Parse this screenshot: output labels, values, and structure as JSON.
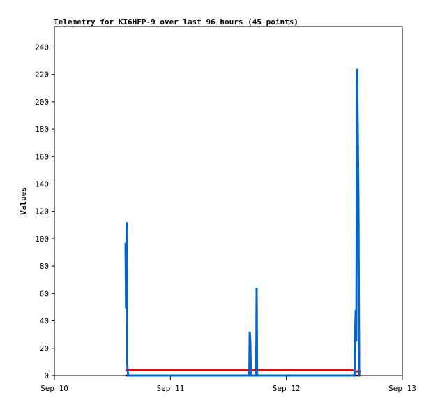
{
  "chart_data": {
    "type": "line",
    "title": "Telemetry for KI6HFP-9 over last 96 hours (45 points)",
    "xlabel": "",
    "ylabel": "Values",
    "xlim": [
      "2023-09-10T00:00",
      "2023-09-13T00:00"
    ],
    "ylim": [
      0,
      255
    ],
    "x_ticks": [
      "Sep 10",
      "Sep 11",
      "Sep 12",
      "Sep 13"
    ],
    "y_ticks": [
      0,
      20,
      40,
      60,
      80,
      100,
      120,
      140,
      160,
      180,
      200,
      220,
      240
    ],
    "grid": false,
    "series": [
      {
        "color": "#000000",
        "points": [
          [
            "2023-09-10T14:43",
            0
          ],
          [
            "2023-09-12T15:21",
            0
          ]
        ]
      },
      {
        "color": "#ff0000",
        "points": [
          [
            "2023-09-10T14:43",
            4
          ],
          [
            "2023-09-12T14:00",
            4
          ],
          [
            "2023-09-12T14:12",
            3
          ],
          [
            "2023-09-12T15:21",
            3
          ]
        ]
      },
      {
        "color": "#0066cc",
        "points": [
          [
            "2023-09-10T14:43",
            97
          ],
          [
            "2023-09-10T14:50",
            49
          ],
          [
            "2023-09-10T14:57",
            112
          ],
          [
            "2023-09-10T15:05",
            8
          ],
          [
            "2023-09-10T15:15",
            0
          ],
          [
            "2023-09-11T16:20",
            0
          ],
          [
            "2023-09-11T16:25",
            32
          ],
          [
            "2023-09-11T16:33",
            24
          ],
          [
            "2023-09-11T16:40",
            0
          ],
          [
            "2023-09-11T17:45",
            0
          ],
          [
            "2023-09-11T17:51",
            64
          ],
          [
            "2023-09-11T17:57",
            0
          ],
          [
            "2023-09-12T14:05",
            0
          ],
          [
            "2023-09-12T14:12",
            25
          ],
          [
            "2023-09-12T14:21",
            48
          ],
          [
            "2023-09-12T14:29",
            25
          ],
          [
            "2023-09-12T14:38",
            224
          ],
          [
            "2023-09-12T14:47",
            176
          ],
          [
            "2023-09-12T14:55",
            128
          ],
          [
            "2023-09-12T15:04",
            0
          ]
        ]
      }
    ]
  }
}
